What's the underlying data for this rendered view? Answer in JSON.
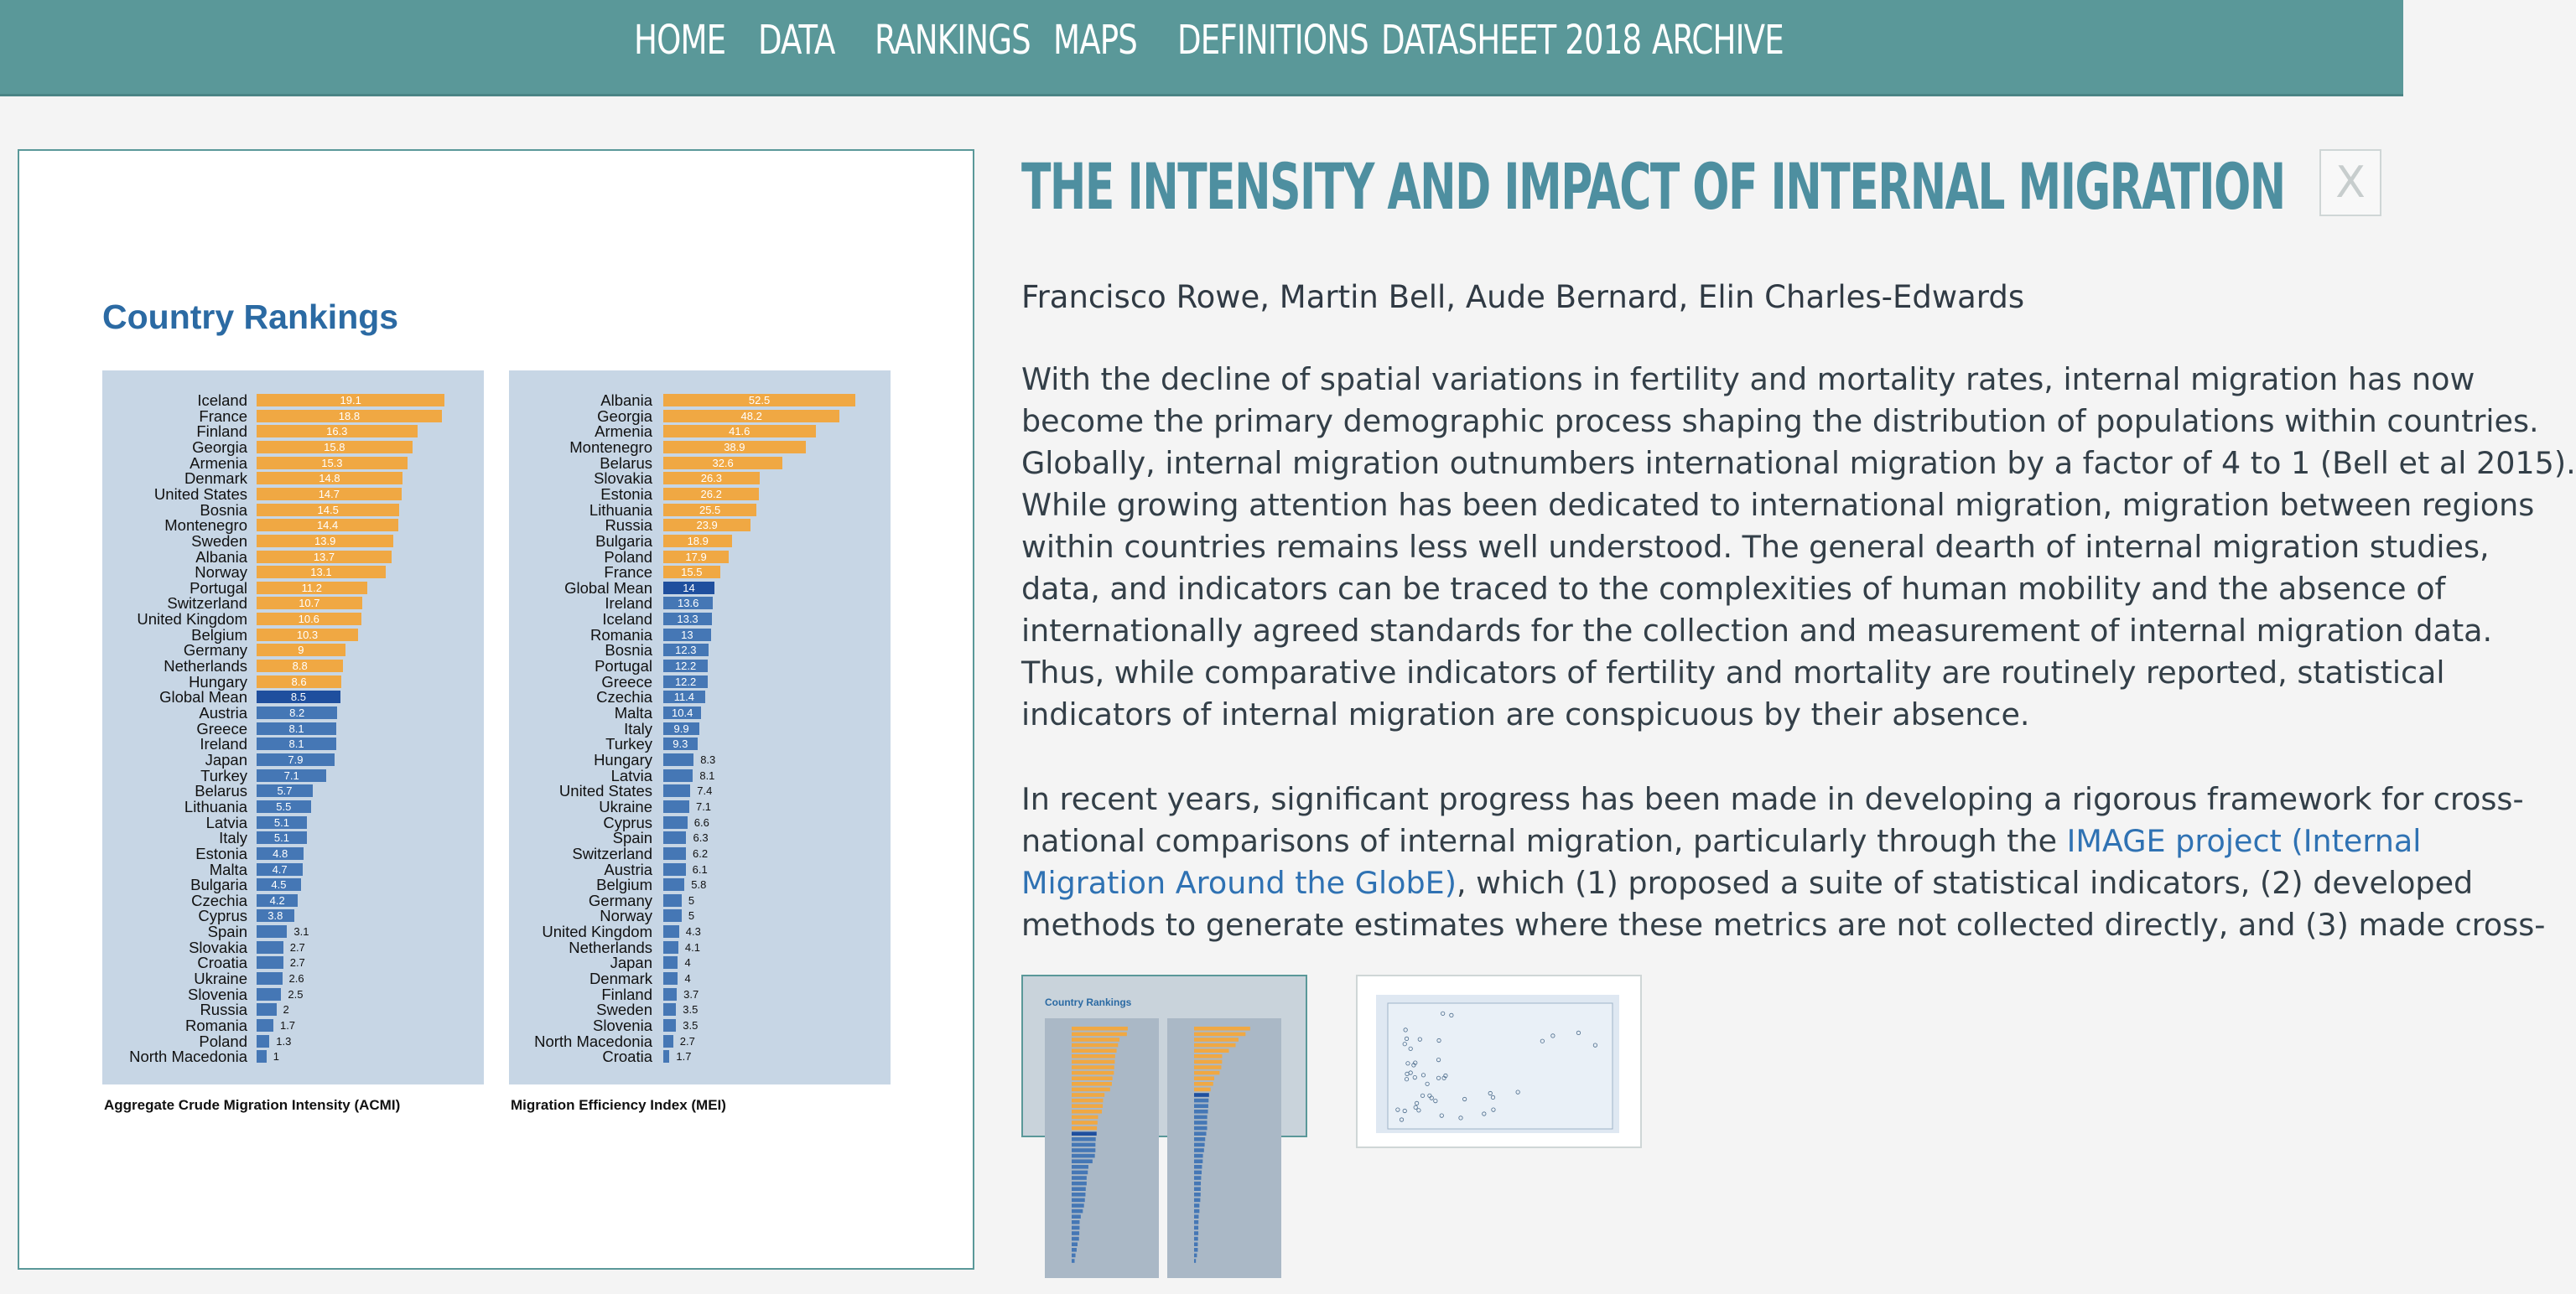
{
  "nav": {
    "items": [
      "HOME",
      "DATA",
      "RANKINGS",
      "MAPS",
      "DEFINITIONS",
      "DATASHEET 2018",
      "ARCHIVE"
    ]
  },
  "figure": {
    "title": "Country Rankings"
  },
  "chart_data": [
    {
      "type": "bar",
      "orientation": "horizontal",
      "caption": "Aggregate Crude Migration Intensity (ACMI)",
      "categories": [
        "Iceland",
        "France",
        "Finland",
        "Georgia",
        "Armenia",
        "Denmark",
        "United States",
        "Bosnia",
        "Montenegro",
        "Sweden",
        "Albania",
        "Norway",
        "Portugal",
        "Switzerland",
        "United Kingdom",
        "Belgium",
        "Germany",
        "Netherlands",
        "Hungary",
        "Global Mean",
        "Austria",
        "Greece",
        "Ireland",
        "Japan",
        "Turkey",
        "Belarus",
        "Lithuania",
        "Latvia",
        "Italy",
        "Estonia",
        "Malta",
        "Bulgaria",
        "Czechia",
        "Cyprus",
        "Spain",
        "Slovakia",
        "Croatia",
        "Ukraine",
        "Slovenia",
        "Russia",
        "Romania",
        "Poland",
        "North Macedonia"
      ],
      "values": [
        19.1,
        18.8,
        16.3,
        15.8,
        15.3,
        14.8,
        14.7,
        14.5,
        14.4,
        13.9,
        13.7,
        13.1,
        11.2,
        10.7,
        10.6,
        10.3,
        9,
        8.8,
        8.6,
        8.5,
        8.2,
        8.1,
        8.1,
        7.9,
        7.1,
        5.7,
        5.5,
        5.1,
        5.1,
        4.8,
        4.7,
        4.5,
        4.2,
        3.8,
        3.1,
        2.7,
        2.7,
        2.6,
        2.5,
        2,
        1.7,
        1.3,
        1
      ],
      "highlight": "Global Mean",
      "colors": {
        "above_mean": "#f0a843",
        "mean": "#1f4f9e",
        "below_mean": "#4577b5"
      }
    },
    {
      "type": "bar",
      "orientation": "horizontal",
      "caption": "Migration Efficiency Index (MEI)",
      "categories": [
        "Albania",
        "Georgia",
        "Armenia",
        "Montenegro",
        "Belarus",
        "Slovakia",
        "Estonia",
        "Lithuania",
        "Russia",
        "Bulgaria",
        "Poland",
        "France",
        "Global Mean",
        "Ireland",
        "Iceland",
        "Romania",
        "Bosnia",
        "Portugal",
        "Greece",
        "Czechia",
        "Malta",
        "Italy",
        "Turkey",
        "Hungary",
        "Latvia",
        "United States",
        "Ukraine",
        "Cyprus",
        "Spain",
        "Switzerland",
        "Austria",
        "Belgium",
        "Germany",
        "Norway",
        "United Kingdom",
        "Netherlands",
        "Japan",
        "Denmark",
        "Finland",
        "Sweden",
        "Slovenia",
        "North Macedonia",
        "Croatia"
      ],
      "values": [
        52.5,
        48.2,
        41.6,
        38.9,
        32.6,
        26.3,
        26.2,
        25.5,
        23.9,
        18.9,
        17.9,
        15.5,
        14,
        13.6,
        13.3,
        13,
        12.3,
        12.2,
        12.2,
        11.4,
        10.4,
        9.9,
        9.3,
        8.3,
        8.1,
        7.4,
        7.1,
        6.6,
        6.3,
        6.2,
        6.1,
        5.8,
        5,
        5,
        4.3,
        4.1,
        4,
        4,
        3.7,
        3.5,
        3.5,
        2.7,
        1.7
      ],
      "highlight": "Global Mean",
      "colors": {
        "above_mean": "#f0a843",
        "mean": "#1f4f9e",
        "below_mean": "#4577b5"
      }
    }
  ],
  "article": {
    "title": "THE INTENSITY AND IMPACT OF INTERNAL MIGRATION",
    "close_label": "X",
    "authors": "Francisco Rowe, Martin Bell, Aude Bernard, Elin Charles-Edwards",
    "p1_lines": [
      "With the decline of spatial variations in fertility and mortality rates, internal migration has now",
      "become the primary demographic process shaping the distribution of populations within countries.",
      "Globally, internal migration outnumbers international migration by a factor of 4 to 1 (Bell et al 2015).",
      "While growing attention has been dedicated to international migration, migration between regions",
      "within countries remains less well understood. The general dearth of internal migration studies,",
      "data, and indicators can be traced to the complexities of human mobility and the absence of",
      "internationally agreed standards for the collection and measurement of internal migration data.",
      "Thus, while comparative indicators of fertility and mortality are routinely reported, statistical",
      "indicators of internal migration are conspicuous by their absence."
    ],
    "p2": {
      "line1": "In recent years, significant progress has been made in developing a rigorous framework for cross-",
      "line2_pre": "national comparisons of internal migration, particularly through the ",
      "link_part1": "IMAGE project (Internal",
      "link_part2": "Migration Around the GlobE)",
      "line3_post": ", which (1) proposed a suite of statistical indicators, (2) developed",
      "line4": "methods to generate estimates where these metrics are not collected directly, and (3) made cross-"
    }
  },
  "thumbnails": [
    {
      "label": "Country Rankings"
    }
  ]
}
